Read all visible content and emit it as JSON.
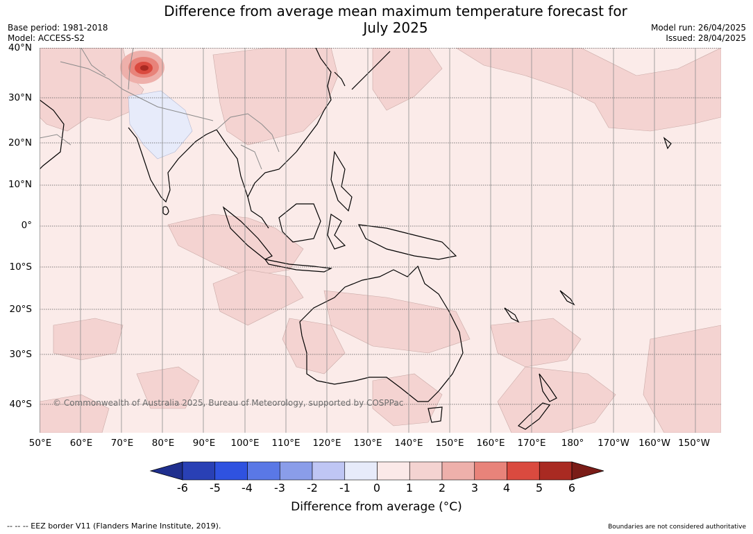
{
  "title_line1": "Difference from average mean maximum temperature forecast for",
  "title_line2": "July 2025",
  "base_period": "Base period: 1981-2018",
  "model": "Model: ACCESS-S2",
  "model_run": "Model run: 26/04/2025",
  "issued": "Issued: 28/04/2025",
  "copyright": "© Commonwealth of Australia 2025, Bureau of Meteorology, supported by COSPPac",
  "lat_labels": [
    "40°N",
    "30°N",
    "20°N",
    "10°N",
    "0°",
    "10°S",
    "20°S",
    "30°S",
    "40°S"
  ],
  "lon_labels": [
    "50°E",
    "60°E",
    "70°E",
    "80°E",
    "90°E",
    "100°E",
    "110°E",
    "120°E",
    "130°E",
    "140°E",
    "150°E",
    "160°E",
    "170°E",
    "180°",
    "170°W",
    "160°W",
    "150°W"
  ],
  "colorbar": {
    "ticks": [
      "-6",
      "-5",
      "-4",
      "-3",
      "-2",
      "-1",
      "0",
      "1",
      "2",
      "3",
      "4",
      "5",
      "6"
    ],
    "colors": [
      "#1f2f8e",
      "#2940b5",
      "#2f52e0",
      "#5a78e6",
      "#8a9de9",
      "#bfc6f4",
      "#e7ebfa",
      "#fbe9e8",
      "#f4d3d1",
      "#eeb0ab",
      "#e8837a",
      "#da4a3f",
      "#a92a22",
      "#7a1c17"
    ],
    "label": "Difference from average (°C)"
  },
  "footer_left": "--  --  -- EEZ border V11 (Flanders Marine Institute, 2019).",
  "footer_right": "Boundaries are not considered authoritative"
}
